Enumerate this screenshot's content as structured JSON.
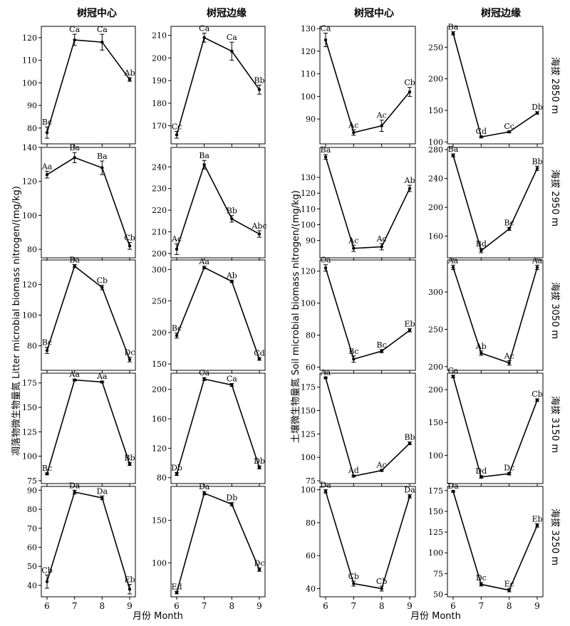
{
  "figure": {
    "column_titles": [
      "树冠中心",
      "树冠边缘",
      "树冠中心",
      "树冠边缘"
    ],
    "left_ylabel": "凋落物微生物量氮 Litter microbial biomass nitrogen/(mg/kg)",
    "right_ylabel": "土壤微生物量氮 Soil microbial biomass nitrogen/(mg/kg)",
    "xlabel": "月份 Month",
    "row_labels": [
      "海拔 2850 m",
      "海拔 2950 m",
      "海拔 3050 m",
      "海拔 3150 m",
      "海拔 3250 m"
    ]
  },
  "chart_data": [
    {
      "type": "line",
      "panel": "litter-center-2850",
      "x": [
        6,
        7,
        8,
        9
      ],
      "values": [
        78,
        119,
        118,
        101.5
      ],
      "errors": [
        2.5,
        2.5,
        3.5,
        0.8
      ],
      "labels": [
        "Bc",
        "Ca",
        "Ca",
        "Ab"
      ],
      "ylim": [
        73,
        125
      ],
      "yticks": [
        80,
        90,
        100,
        110,
        120
      ]
    },
    {
      "type": "line",
      "panel": "litter-edge-2850",
      "x": [
        6,
        7,
        8,
        9
      ],
      "values": [
        166,
        209,
        203,
        186
      ],
      "errors": [
        1.5,
        2,
        4,
        2
      ],
      "labels": [
        "Cc",
        "Ca",
        "Ca",
        "Bb"
      ],
      "ylim": [
        162,
        214
      ],
      "yticks": [
        170,
        180,
        190,
        200,
        210
      ]
    },
    {
      "type": "line",
      "panel": "soil-center-2850",
      "x": [
        6,
        7,
        8,
        9
      ],
      "values": [
        125,
        84,
        87,
        102
      ],
      "errors": [
        3,
        1.2,
        2.5,
        2
      ],
      "labels": [
        "Ca",
        "Ac",
        "Ac",
        "Cb"
      ],
      "ylim": [
        79,
        131
      ],
      "yticks": [
        90,
        100,
        110,
        120,
        130
      ]
    },
    {
      "type": "line",
      "panel": "soil-edge-2850",
      "x": [
        6,
        7,
        8,
        9
      ],
      "values": [
        272,
        108,
        116,
        146
      ],
      "errors": [
        2.5,
        1.5,
        1.5,
        2
      ],
      "labels": [
        "Ba",
        "Cd",
        "Cc",
        "Db"
      ],
      "ylim": [
        97,
        283
      ],
      "yticks": [
        100,
        150,
        200,
        250
      ]
    },
    {
      "type": "line",
      "panel": "litter-center-2950",
      "x": [
        6,
        7,
        8,
        9
      ],
      "values": [
        124,
        134,
        128,
        82
      ],
      "errors": [
        2,
        3,
        4,
        2
      ],
      "labels": [
        "Aa",
        "Ba",
        "Ba",
        "Cb"
      ],
      "ylim": [
        75,
        140
      ],
      "yticks": [
        80,
        100,
        120,
        140
      ]
    },
    {
      "type": "line",
      "panel": "litter-edge-2950",
      "x": [
        6,
        7,
        8,
        9
      ],
      "values": [
        202,
        241,
        216,
        209
      ],
      "errors": [
        2.5,
        2,
        1.5,
        1.5
      ],
      "labels": [
        "Ac",
        "Ba",
        "Bb",
        "Abc"
      ],
      "ylim": [
        198,
        249
      ],
      "yticks": [
        200,
        210,
        220,
        230,
        240
      ]
    },
    {
      "type": "line",
      "panel": "soil-center-2950",
      "x": [
        6,
        7,
        8,
        9
      ],
      "values": [
        143,
        85,
        86,
        123
      ],
      "errors": [
        1.5,
        2,
        2,
        2
      ],
      "labels": [
        "Ba",
        "Ac",
        "Ac",
        "Ab"
      ],
      "ylim": [
        79,
        149
      ],
      "yticks": [
        90,
        100,
        110,
        120,
        130
      ]
    },
    {
      "type": "line",
      "panel": "soil-edge-2950",
      "x": [
        6,
        7,
        8,
        9
      ],
      "values": [
        272,
        140,
        170,
        254
      ],
      "errors": [
        2,
        3,
        2,
        3
      ],
      "labels": [
        "Ba",
        "Bd",
        "Bc",
        "Bb"
      ],
      "ylim": [
        130,
        283
      ],
      "yticks": [
        160,
        200,
        240,
        280
      ]
    },
    {
      "type": "line",
      "panel": "litter-center-3050",
      "x": [
        6,
        7,
        8,
        9
      ],
      "values": [
        77,
        132,
        118,
        71
      ],
      "errors": [
        2,
        1,
        1.5,
        1.5
      ],
      "labels": [
        "Bc",
        "Ba",
        "Cb",
        "Dc"
      ],
      "ylim": [
        64,
        136
      ],
      "yticks": [
        80,
        100,
        120
      ]
    },
    {
      "type": "line",
      "panel": "litter-edge-3050",
      "x": [
        6,
        7,
        8,
        9
      ],
      "values": [
        195,
        303,
        281,
        158
      ],
      "errors": [
        4,
        2,
        2,
        2
      ],
      "labels": [
        "Bc",
        "Aa",
        "Ab",
        "Cd"
      ],
      "ylim": [
        140,
        315
      ],
      "yticks": [
        150,
        200,
        250,
        300
      ]
    },
    {
      "type": "line",
      "panel": "soil-center-3050",
      "x": [
        6,
        7,
        8,
        9
      ],
      "values": [
        122,
        65,
        70,
        83
      ],
      "errors": [
        2,
        2,
        1,
        1
      ],
      "labels": [
        "Ca",
        "Bc",
        "Bc",
        "Eb"
      ],
      "ylim": [
        58,
        127
      ],
      "yticks": [
        60,
        80,
        100,
        120
      ]
    },
    {
      "type": "line",
      "panel": "soil-edge-3050",
      "x": [
        6,
        7,
        8,
        9
      ],
      "values": [
        333,
        218,
        205,
        333
      ],
      "errors": [
        3,
        3,
        3,
        3
      ],
      "labels": [
        "Aa",
        "Ab",
        "Ac",
        "Aa"
      ],
      "ylim": [
        195,
        343
      ],
      "yticks": [
        200,
        250,
        300
      ]
    },
    {
      "type": "line",
      "panel": "litter-center-3150",
      "x": [
        6,
        7,
        8,
        9
      ],
      "values": [
        82,
        178,
        176,
        92
      ],
      "errors": [
        1,
        1,
        1,
        1.5
      ],
      "labels": [
        "Bc",
        "Aa",
        "Aa",
        "Bb"
      ],
      "ylim": [
        72,
        185
      ],
      "yticks": [
        75,
        100,
        125,
        150,
        175
      ]
    },
    {
      "type": "line",
      "panel": "litter-edge-3150",
      "x": [
        6,
        7,
        8,
        9
      ],
      "values": [
        85,
        214,
        206,
        94
      ],
      "errors": [
        2,
        2,
        2,
        2
      ],
      "labels": [
        "Db",
        "Ca",
        "Ca",
        "Db"
      ],
      "ylim": [
        72,
        222
      ],
      "yticks": [
        80,
        120,
        160,
        200
      ]
    },
    {
      "type": "line",
      "panel": "soil-center-3150",
      "x": [
        6,
        7,
        8,
        9
      ],
      "values": [
        185,
        80,
        86,
        115
      ],
      "errors": [
        1,
        1,
        1,
        1.5
      ],
      "labels": [
        "Aa",
        "Ad",
        "Ac",
        "Bb"
      ],
      "ylim": [
        72,
        190
      ],
      "yticks": [
        75,
        100,
        125,
        150,
        175
      ]
    },
    {
      "type": "line",
      "panel": "soil-edge-3150",
      "x": [
        6,
        7,
        8,
        9
      ],
      "values": [
        220,
        67,
        72,
        184
      ],
      "errors": [
        2,
        2,
        2,
        2
      ],
      "labels": [
        "Ca",
        "Dd",
        "Dc",
        "Cb"
      ],
      "ylim": [
        57,
        225
      ],
      "yticks": [
        100,
        150,
        200
      ]
    },
    {
      "type": "line",
      "panel": "litter-center-3250",
      "x": [
        6,
        7,
        8,
        9
      ],
      "values": [
        42,
        89,
        86,
        38
      ],
      "errors": [
        3.5,
        1,
        1,
        2.5
      ],
      "labels": [
        "Cb",
        "Da",
        "Da",
        "Eb"
      ],
      "ylim": [
        34,
        92
      ],
      "yticks": [
        40,
        50,
        60,
        70,
        80,
        90
      ]
    },
    {
      "type": "line",
      "panel": "litter-edge-3250",
      "x": [
        6,
        7,
        8,
        9
      ],
      "values": [
        65,
        182,
        169,
        92
      ],
      "errors": [
        1.5,
        2,
        2,
        2
      ],
      "labels": [
        "Ed",
        "Da",
        "Db",
        "Dc"
      ],
      "ylim": [
        60,
        190
      ],
      "yticks": [
        100,
        150
      ]
    },
    {
      "type": "line",
      "panel": "soil-center-3250",
      "x": [
        6,
        7,
        8,
        9
      ],
      "values": [
        99,
        43,
        40,
        96
      ],
      "errors": [
        1,
        1.5,
        1.5,
        1
      ],
      "labels": [
        "Da",
        "Cb",
        "Cb",
        "Da"
      ],
      "ylim": [
        35,
        102
      ],
      "yticks": [
        40,
        60,
        80,
        100
      ]
    },
    {
      "type": "line",
      "panel": "soil-edge-3250",
      "x": [
        6,
        7,
        8,
        9
      ],
      "values": [
        174,
        62,
        55,
        133
      ],
      "errors": [
        1,
        2,
        2,
        2
      ],
      "labels": [
        "Da",
        "Dc",
        "Ec",
        "Eb"
      ],
      "ylim": [
        47,
        180
      ],
      "yticks": [
        50,
        75,
        100,
        125,
        150,
        175
      ]
    }
  ],
  "xticks": [
    "6",
    "7",
    "8",
    "9"
  ]
}
